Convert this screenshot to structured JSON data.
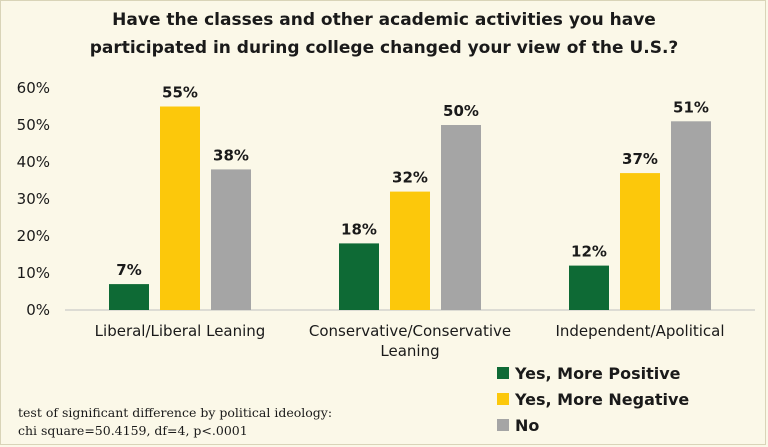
{
  "chart_data": {
    "type": "bar",
    "title_lines": [
      "Have the classes and other academic activities you have",
      "participated in during college changed your view of the U.S.?"
    ],
    "categories": [
      [
        "Liberal/Liberal Leaning"
      ],
      [
        "Conservative/Conservative",
        "Leaning"
      ],
      [
        "Independent/Apolitical"
      ]
    ],
    "series": [
      {
        "name": "Yes, More Positive",
        "color": "#0e6a35",
        "values": [
          7,
          18,
          12
        ]
      },
      {
        "name": "Yes, More Negative",
        "color": "#fcc80b",
        "values": [
          55,
          32,
          37
        ]
      },
      {
        "name": "No",
        "color": "#a5a5a5",
        "values": [
          38,
          50,
          51
        ]
      }
    ],
    "ylim": [
      0,
      60
    ],
    "yticks": [
      "0%",
      "10%",
      "20%",
      "30%",
      "40%",
      "50%",
      "60%"
    ],
    "value_suffix": "%",
    "legend_position": "bottom-right",
    "footnote_lines": [
      "test of significant difference by political ideology:",
      "chi square=50.4159, df=4, p<.0001"
    ]
  }
}
